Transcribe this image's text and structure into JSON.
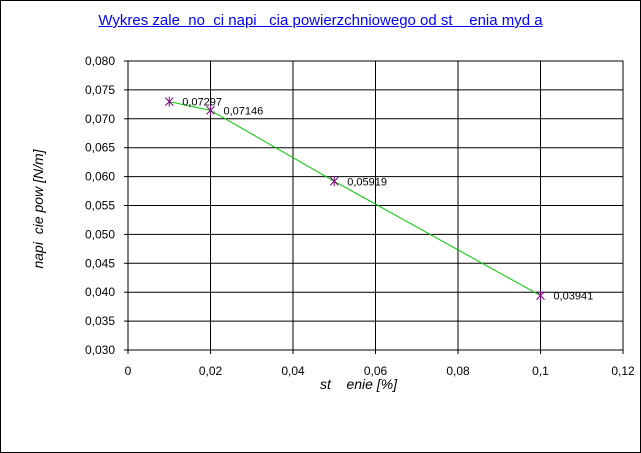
{
  "chart_data": {
    "type": "scatter",
    "title": "Wykres zale  no  ci napi   cia powierzchniowego od st    enia myd a",
    "xlabel": "st    enie [%]",
    "ylabel": "napi  cie pow [N/m]",
    "xlim": [
      0,
      0.12
    ],
    "ylim": [
      0.03,
      0.08
    ],
    "x_ticks": [
      "0",
      "0,02",
      "0,04",
      "0,06",
      "0,08",
      "0,1",
      "0,12"
    ],
    "y_ticks": [
      "0,030",
      "0,035",
      "0,040",
      "0,045",
      "0,050",
      "0,055",
      "0,060",
      "0,065",
      "0,070",
      "0,075",
      "0,080"
    ],
    "grid": true,
    "legend": "none",
    "series": [
      {
        "x": [
          0.01,
          0.02,
          0.05,
          0.1
        ],
        "y": [
          0.07297,
          0.07146,
          0.05919,
          0.03941
        ],
        "labels": [
          "0,07297",
          "0,07146",
          "0,05919",
          "0,03941"
        ],
        "marker": "star",
        "marker_color": "#800080",
        "line_color": "#00cc00"
      }
    ]
  }
}
